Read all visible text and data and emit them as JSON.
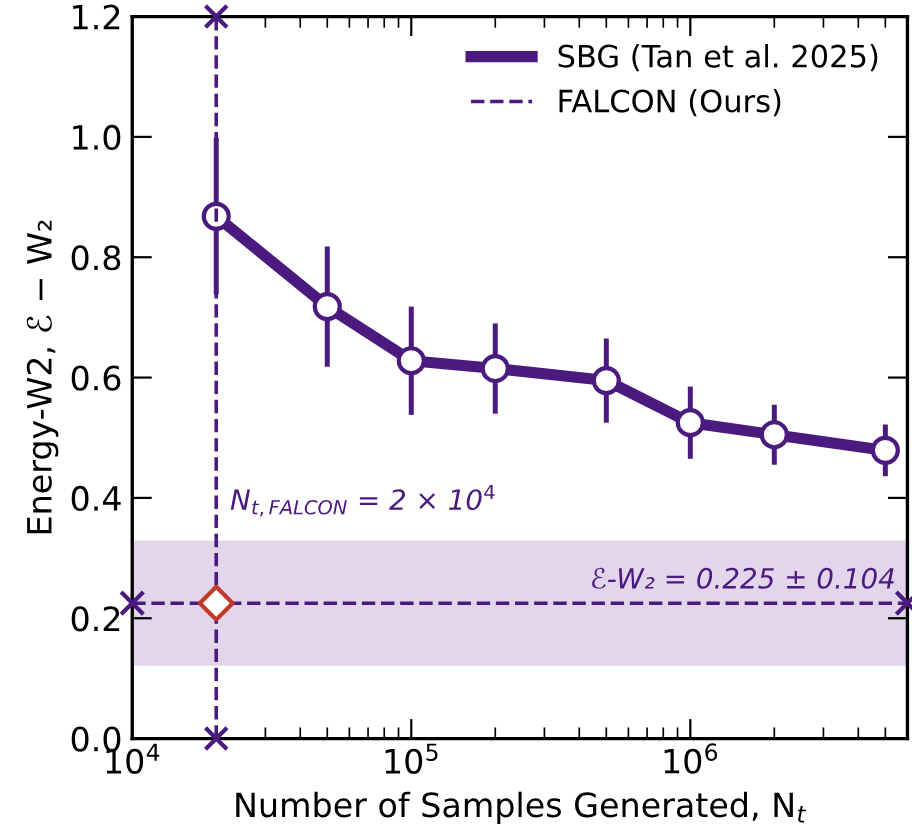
{
  "chart_data": {
    "type": "line",
    "xlabel": "Number of Samples Generated, N$_{t}$",
    "ylabel": "Energy-W2, ℰ − W₂",
    "x": [
      20000,
      50000,
      100000,
      200000,
      500000,
      1000000,
      2000000,
      5000000
    ],
    "series": [
      {
        "name": "SBG (Tan et al. 2025)",
        "color": "#4b1a7f",
        "marker": "circle",
        "line_style": "solid",
        "values": [
          0.868,
          0.718,
          0.628,
          0.615,
          0.595,
          0.525,
          0.505,
          0.479
        ],
        "errors": [
          0.13,
          0.1,
          0.09,
          0.075,
          0.07,
          0.06,
          0.05,
          0.043
        ]
      },
      {
        "name": "FALCON (Ours)",
        "type": "line",
        "color": "#4b1a7f",
        "marker": "cross",
        "line_style": "dashed",
        "x": [
          10000,
          6000000
        ],
        "values": [
          0.225,
          0.225
        ]
      },
      {
        "type": "scatter",
        "color": "#4b1a7f",
        "marker": "cross",
        "x": [
          20000,
          20000
        ],
        "values": [
          0,
          1.2
        ]
      },
      {
        "type": "scatter",
        "color": "#c0392b",
        "marker": "diamond",
        "x": [
          20000
        ],
        "values": [
          0.225
        ]
      }
    ],
    "bands": [
      {
        "axis": "y",
        "from": 0.121,
        "to": 0.329,
        "color": "#e2d5ec",
        "label": "ℰ-W₂ = 0.225 ± 0.104"
      }
    ],
    "ref_lines": [
      {
        "axis": "x",
        "value": 20000,
        "color": "#4b1a7f",
        "line_style": "dashed"
      }
    ],
    "annotations": [
      "N$_{t,FALCON}$ = 2 × 10$^{4}$"
    ],
    "log": "x",
    "xlim": [
      10000,
      6000000
    ],
    "xticks": [
      {
        "value": 10000,
        "label": "10$^{4}$"
      },
      {
        "value": 100000,
        "label": "10$^{5}$"
      },
      {
        "value": 1000000,
        "label": "10$^{6}$"
      }
    ],
    "ylim": [
      0,
      1.2
    ],
    "yticks": [
      {
        "value": 0,
        "label": "0.0"
      },
      {
        "value": 0.2,
        "label": "0.2"
      },
      {
        "value": 0.4,
        "label": "0.4"
      },
      {
        "value": 0.6,
        "label": "0.6"
      },
      {
        "value": 0.8,
        "label": "0.8"
      },
      {
        "value": 1.0,
        "label": "1.0"
      },
      {
        "value": 1.2,
        "label": "1.2"
      }
    ],
    "grid": false,
    "legend": "top right"
  }
}
